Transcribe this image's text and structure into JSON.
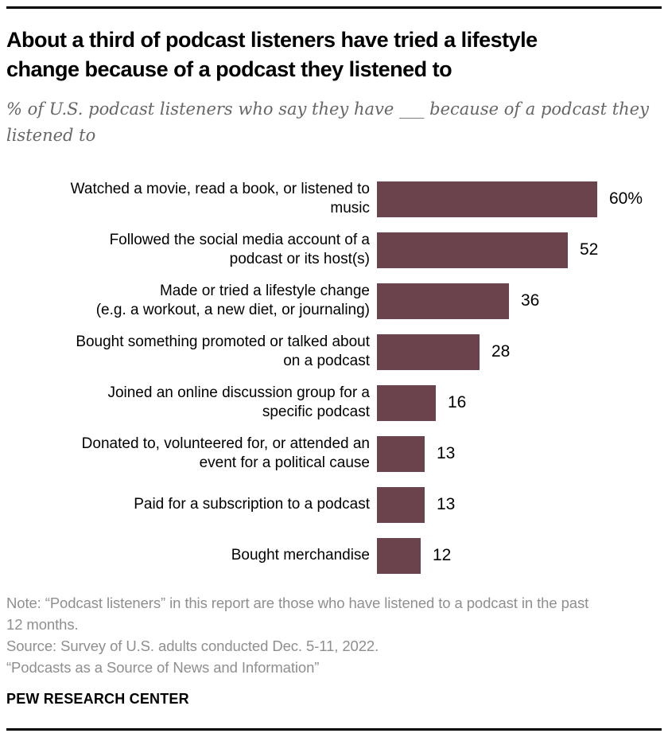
{
  "header": {
    "title": "About a third of podcast listeners have tried a lifestyle\nchange because of a podcast they listened to",
    "subtitle": "% of U.S. podcast listeners who say they have ___ because of a podcast they\nlistened to"
  },
  "chart_data": {
    "type": "bar",
    "orientation": "horizontal",
    "title": "About a third of podcast listeners have tried a lifestyle change because of a podcast they listened to",
    "subtitle": "% of U.S. podcast listeners who say they have ___ because of a podcast they listened to",
    "categories": [
      "Watched a movie, read a book, or listened to\nmusic",
      "Followed the social media account of a\npodcast or its host(s)",
      "Made or tried a lifestyle change\n(e.g. a workout, a new diet, or journaling)",
      "Bought something promoted or talked about\non a podcast",
      "Joined an online discussion group for a\nspecific podcast",
      "Donated to, volunteered for, or attended an\nevent for a political cause",
      "Paid for a subscription to a podcast",
      "Bought merchandise"
    ],
    "values": [
      60,
      52,
      36,
      28,
      16,
      13,
      13,
      12
    ],
    "value_labels": [
      "60%",
      "52",
      "36",
      "28",
      "16",
      "13",
      "13",
      "12"
    ],
    "bar_color": "#6b434c",
    "xlim": [
      0,
      60
    ],
    "grid": false,
    "legend": "none",
    "axis_ticks": "none",
    "value_label_position": "right-of-bar"
  },
  "footer": {
    "note": "Note: “Podcast listeners” in this report are those who have listened to a podcast in the past\n12 months.",
    "source": "Source: Survey of U.S. adults conducted Dec. 5-11, 2022.",
    "report": "“Podcasts as a Source of News and Information”",
    "brand": "PEW RESEARCH CENTER"
  }
}
